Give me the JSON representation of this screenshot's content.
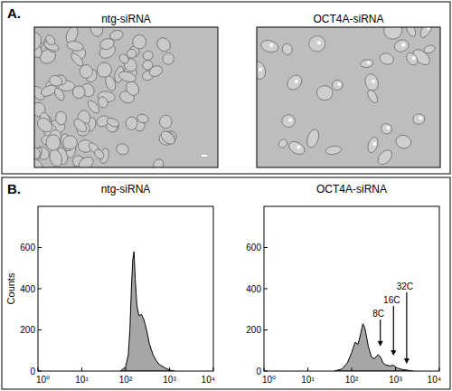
{
  "figure": {
    "panel_a": {
      "label": "A.",
      "images": [
        {
          "title": "ntg-siRNA"
        },
        {
          "title": "OCT4A-siRNA"
        }
      ]
    },
    "panel_b": {
      "label": "B."
    }
  },
  "chart_data": [
    {
      "type": "area",
      "title": "ntg-siRNA",
      "y_label": "Counts",
      "x": [
        75,
        100,
        115,
        125,
        135,
        145,
        155,
        165,
        180,
        200,
        230,
        260,
        300,
        350,
        420,
        500,
        600,
        800,
        1000,
        1300
      ],
      "values": [
        0,
        20,
        80,
        200,
        400,
        540,
        580,
        450,
        320,
        270,
        275,
        250,
        200,
        130,
        80,
        50,
        30,
        15,
        5,
        0
      ],
      "color": "#a6a6a6",
      "log": "x",
      "xlim": [
        1,
        10000
      ],
      "xticks": [
        {
          "value": 1,
          "label": "10⁰"
        },
        {
          "value": 10,
          "label": "10¹"
        },
        {
          "value": 100,
          "label": "10²"
        },
        {
          "value": 1000,
          "label": "10³"
        },
        {
          "value": 10000,
          "label": "10⁴"
        }
      ],
      "ylim": [
        0,
        800
      ],
      "yticks": [
        0,
        200,
        400,
        600
      ]
    },
    {
      "type": "area",
      "title": "OCT4A-siRNA",
      "x": [
        40,
        60,
        80,
        100,
        120,
        140,
        160,
        180,
        200,
        240,
        280,
        330,
        400,
        450,
        520,
        600,
        750,
        900,
        1100,
        1400,
        1800,
        2500
      ],
      "values": [
        0,
        10,
        40,
        90,
        140,
        130,
        180,
        230,
        210,
        120,
        70,
        60,
        80,
        70,
        40,
        30,
        25,
        28,
        15,
        8,
        5,
        0
      ],
      "color": "#a6a6a6",
      "log": "x",
      "xlim": [
        1,
        10000
      ],
      "xticks": [
        {
          "value": 1,
          "label": "10⁰"
        },
        {
          "value": 10,
          "label": "10¹"
        },
        {
          "value": 100,
          "label": "10²"
        },
        {
          "value": 1000,
          "label": "10³"
        },
        {
          "value": 10000,
          "label": "10⁴"
        }
      ],
      "ylim": [
        0,
        800
      ],
      "yticks": [
        0,
        200,
        400,
        600
      ],
      "annotations": [
        {
          "text": "8C",
          "x": 450,
          "y": 120
        },
        {
          "text": "16C",
          "x": 900,
          "y": 75
        },
        {
          "text": "32C",
          "x": 1800,
          "y": 35
        }
      ]
    }
  ]
}
